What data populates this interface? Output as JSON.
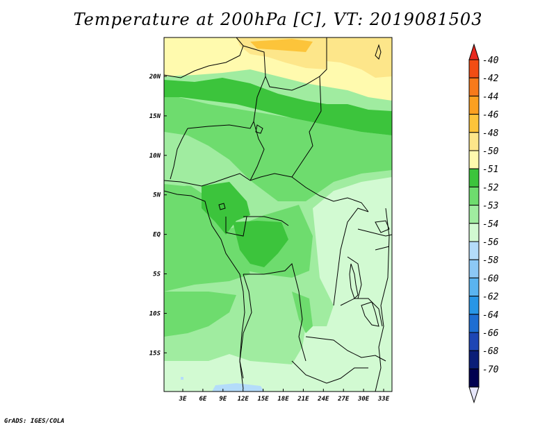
{
  "title": "Temperature at 200hPa [C], VT: 2019081503",
  "credit": "GrADS: IGES/COLA",
  "map": {
    "lat_labels": [
      "20N",
      "15N",
      "10N",
      "5N",
      "EQ",
      "5S",
      "10S",
      "15S"
    ],
    "lon_labels": [
      "3E",
      "6E",
      "9E",
      "12E",
      "15E",
      "18E",
      "21E",
      "24E",
      "27E",
      "30E",
      "33E"
    ]
  },
  "colorbar": {
    "levels": [
      "-40",
      "-42",
      "-44",
      "-46",
      "-48",
      "-50",
      "-51",
      "-52",
      "-53",
      "-54",
      "-56",
      "-58",
      "-60",
      "-62",
      "-64",
      "-66",
      "-68",
      "-70"
    ],
    "colors": [
      "#e8281e",
      "#f24d14",
      "#f77a1a",
      "#fba020",
      "#fcc43a",
      "#fde68a",
      "#fffaae",
      "#3cc43c",
      "#6edc6e",
      "#a0eca0",
      "#d2fad2",
      "#b4dcfa",
      "#8cc8f5",
      "#5ab4f0",
      "#2896e6",
      "#1e6ed2",
      "#1e46b4",
      "#0a1e78",
      "#000050",
      "#e6e6fa"
    ]
  }
}
